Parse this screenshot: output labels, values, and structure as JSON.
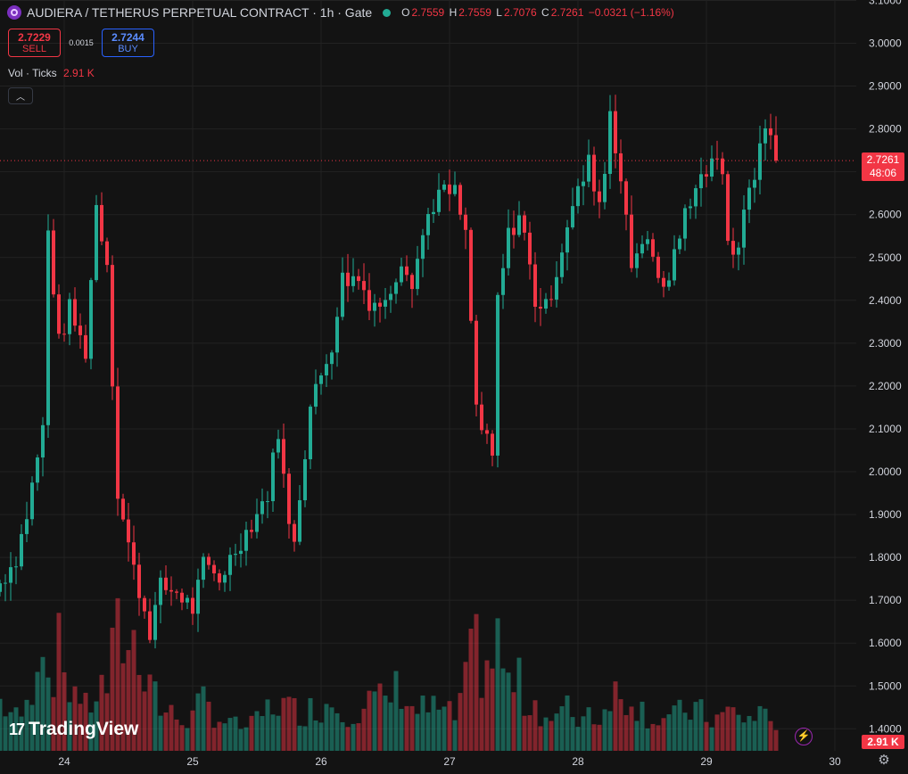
{
  "header": {
    "title": "AUDIERA / TETHERUS PERPETUAL CONTRACT · 1h · Gate",
    "ohlc": {
      "o_label": "O",
      "o": "2.7559",
      "h_label": "H",
      "h": "2.7559",
      "l_label": "L",
      "l": "2.7076",
      "c_label": "C",
      "c": "2.7261",
      "change": "−0.0321 (−1.16%)"
    }
  },
  "trade": {
    "sell_price": "2.7229",
    "sell_label": "SELL",
    "spread": "0.0015",
    "buy_price": "2.7244",
    "buy_label": "BUY"
  },
  "volume_legend": {
    "label": "Vol · Ticks",
    "value": "2.91 K"
  },
  "current_price": {
    "price": "2.7261",
    "countdown": "48:06"
  },
  "volume_tag": "2.91 K",
  "logo_text": "TradingView",
  "colors": {
    "up": "#22ab94",
    "down": "#f23645",
    "background": "#131313",
    "grid": "#222222",
    "text": "#d1d4dc"
  },
  "icons": [
    "symbol-icon",
    "status-dot-icon",
    "chevron-up-icon",
    "tradingview-logo-icon",
    "flash-icon",
    "settings-icon"
  ],
  "chart_data": {
    "type": "candlestick",
    "ylim": [
      1.35,
      3.1
    ],
    "y_ticks": [
      "3.1000",
      "3.0000",
      "2.9000",
      "2.8000",
      "2.7000",
      "2.6000",
      "2.5000",
      "2.4000",
      "2.3000",
      "2.2000",
      "2.1000",
      "2.0000",
      "1.9000",
      "1.8000",
      "1.7000",
      "1.6000",
      "1.5000",
      "1.4000"
    ],
    "y_tick_values": [
      3.1,
      3.0,
      2.9,
      2.8,
      2.7,
      2.6,
      2.5,
      2.4,
      2.3,
      2.2,
      2.1,
      2.0,
      1.9,
      1.8,
      1.7,
      1.6,
      1.5,
      1.4
    ],
    "x_ticks": [
      "24",
      "25",
      "26",
      "27",
      "28",
      "29",
      "30"
    ],
    "x_tick_hours": [
      12,
      36,
      60,
      84,
      108,
      132,
      156
    ],
    "last_price": 2.7261,
    "keypoints": [
      [
        0,
        1.74,
        0.6
      ],
      [
        3,
        1.8,
        0.4
      ],
      [
        5,
        1.9,
        0.5
      ],
      [
        8,
        2.1,
        1.6
      ],
      [
        9,
        2.56,
        0.9
      ],
      [
        11,
        2.3,
        1.2
      ],
      [
        13,
        2.38,
        0.8
      ],
      [
        15,
        2.31,
        0.7
      ],
      [
        16,
        2.28,
        0.5
      ],
      [
        18,
        2.62,
        0.7
      ],
      [
        20,
        2.49,
        0.8
      ],
      [
        22,
        1.95,
        1.4
      ],
      [
        25,
        1.77,
        1.3
      ],
      [
        28,
        1.63,
        1.0
      ],
      [
        30,
        1.73,
        0.5
      ],
      [
        33,
        1.72,
        0.4
      ],
      [
        36,
        1.68,
        0.4
      ],
      [
        38,
        1.78,
        0.6
      ],
      [
        41,
        1.75,
        0.4
      ],
      [
        44,
        1.82,
        0.3
      ],
      [
        47,
        1.88,
        0.3
      ],
      [
        50,
        1.95,
        0.5
      ],
      [
        52,
        2.1,
        0.6
      ],
      [
        54,
        1.87,
        0.5
      ],
      [
        55,
        1.85,
        0.5
      ],
      [
        58,
        2.15,
        0.5
      ],
      [
        62,
        2.3,
        0.6
      ],
      [
        64,
        2.45,
        0.5
      ],
      [
        67,
        2.45,
        0.5
      ],
      [
        69,
        2.4,
        0.6
      ],
      [
        72,
        2.39,
        0.6
      ],
      [
        75,
        2.5,
        0.8
      ],
      [
        77,
        2.45,
        0.5
      ],
      [
        80,
        2.6,
        0.5
      ],
      [
        82,
        2.65,
        0.5
      ],
      [
        85,
        2.65,
        0.4
      ],
      [
        87,
        2.55,
        0.8
      ],
      [
        89,
        2.15,
        1.3
      ],
      [
        90,
        2.1,
        1.0
      ],
      [
        92,
        2.03,
        1.1
      ],
      [
        93,
        2.4,
        1.3
      ],
      [
        95,
        2.55,
        0.8
      ],
      [
        97,
        2.6,
        0.8
      ],
      [
        98,
        2.55,
        0.6
      ],
      [
        100,
        2.4,
        0.6
      ],
      [
        102,
        2.38,
        0.4
      ],
      [
        104,
        2.47,
        0.4
      ],
      [
        106,
        2.58,
        0.5
      ],
      [
        108,
        2.65,
        0.4
      ],
      [
        110,
        2.72,
        0.5
      ],
      [
        112,
        2.63,
        0.4
      ],
      [
        113,
        2.7,
        0.5
      ],
      [
        114,
        2.85,
        0.8
      ],
      [
        116,
        2.68,
        0.6
      ],
      [
        118,
        2.48,
        0.7
      ],
      [
        120,
        2.55,
        0.5
      ],
      [
        122,
        2.5,
        0.4
      ],
      [
        124,
        2.42,
        0.4
      ],
      [
        126,
        2.5,
        0.4
      ],
      [
        128,
        2.6,
        0.5
      ],
      [
        130,
        2.68,
        0.5
      ],
      [
        132,
        2.7,
        0.4
      ],
      [
        133,
        2.74,
        0.4
      ],
      [
        135,
        2.68,
        0.4
      ],
      [
        136,
        2.55,
        0.5
      ],
      [
        138,
        2.5,
        0.4
      ],
      [
        139,
        2.62,
        0.4
      ],
      [
        141,
        2.7,
        0.4
      ],
      [
        143,
        2.8,
        0.5
      ],
      [
        144,
        2.78,
        0.4
      ],
      [
        145,
        2.7261,
        0.4
      ]
    ],
    "volume_scale": [
      0,
      2.91
    ]
  }
}
